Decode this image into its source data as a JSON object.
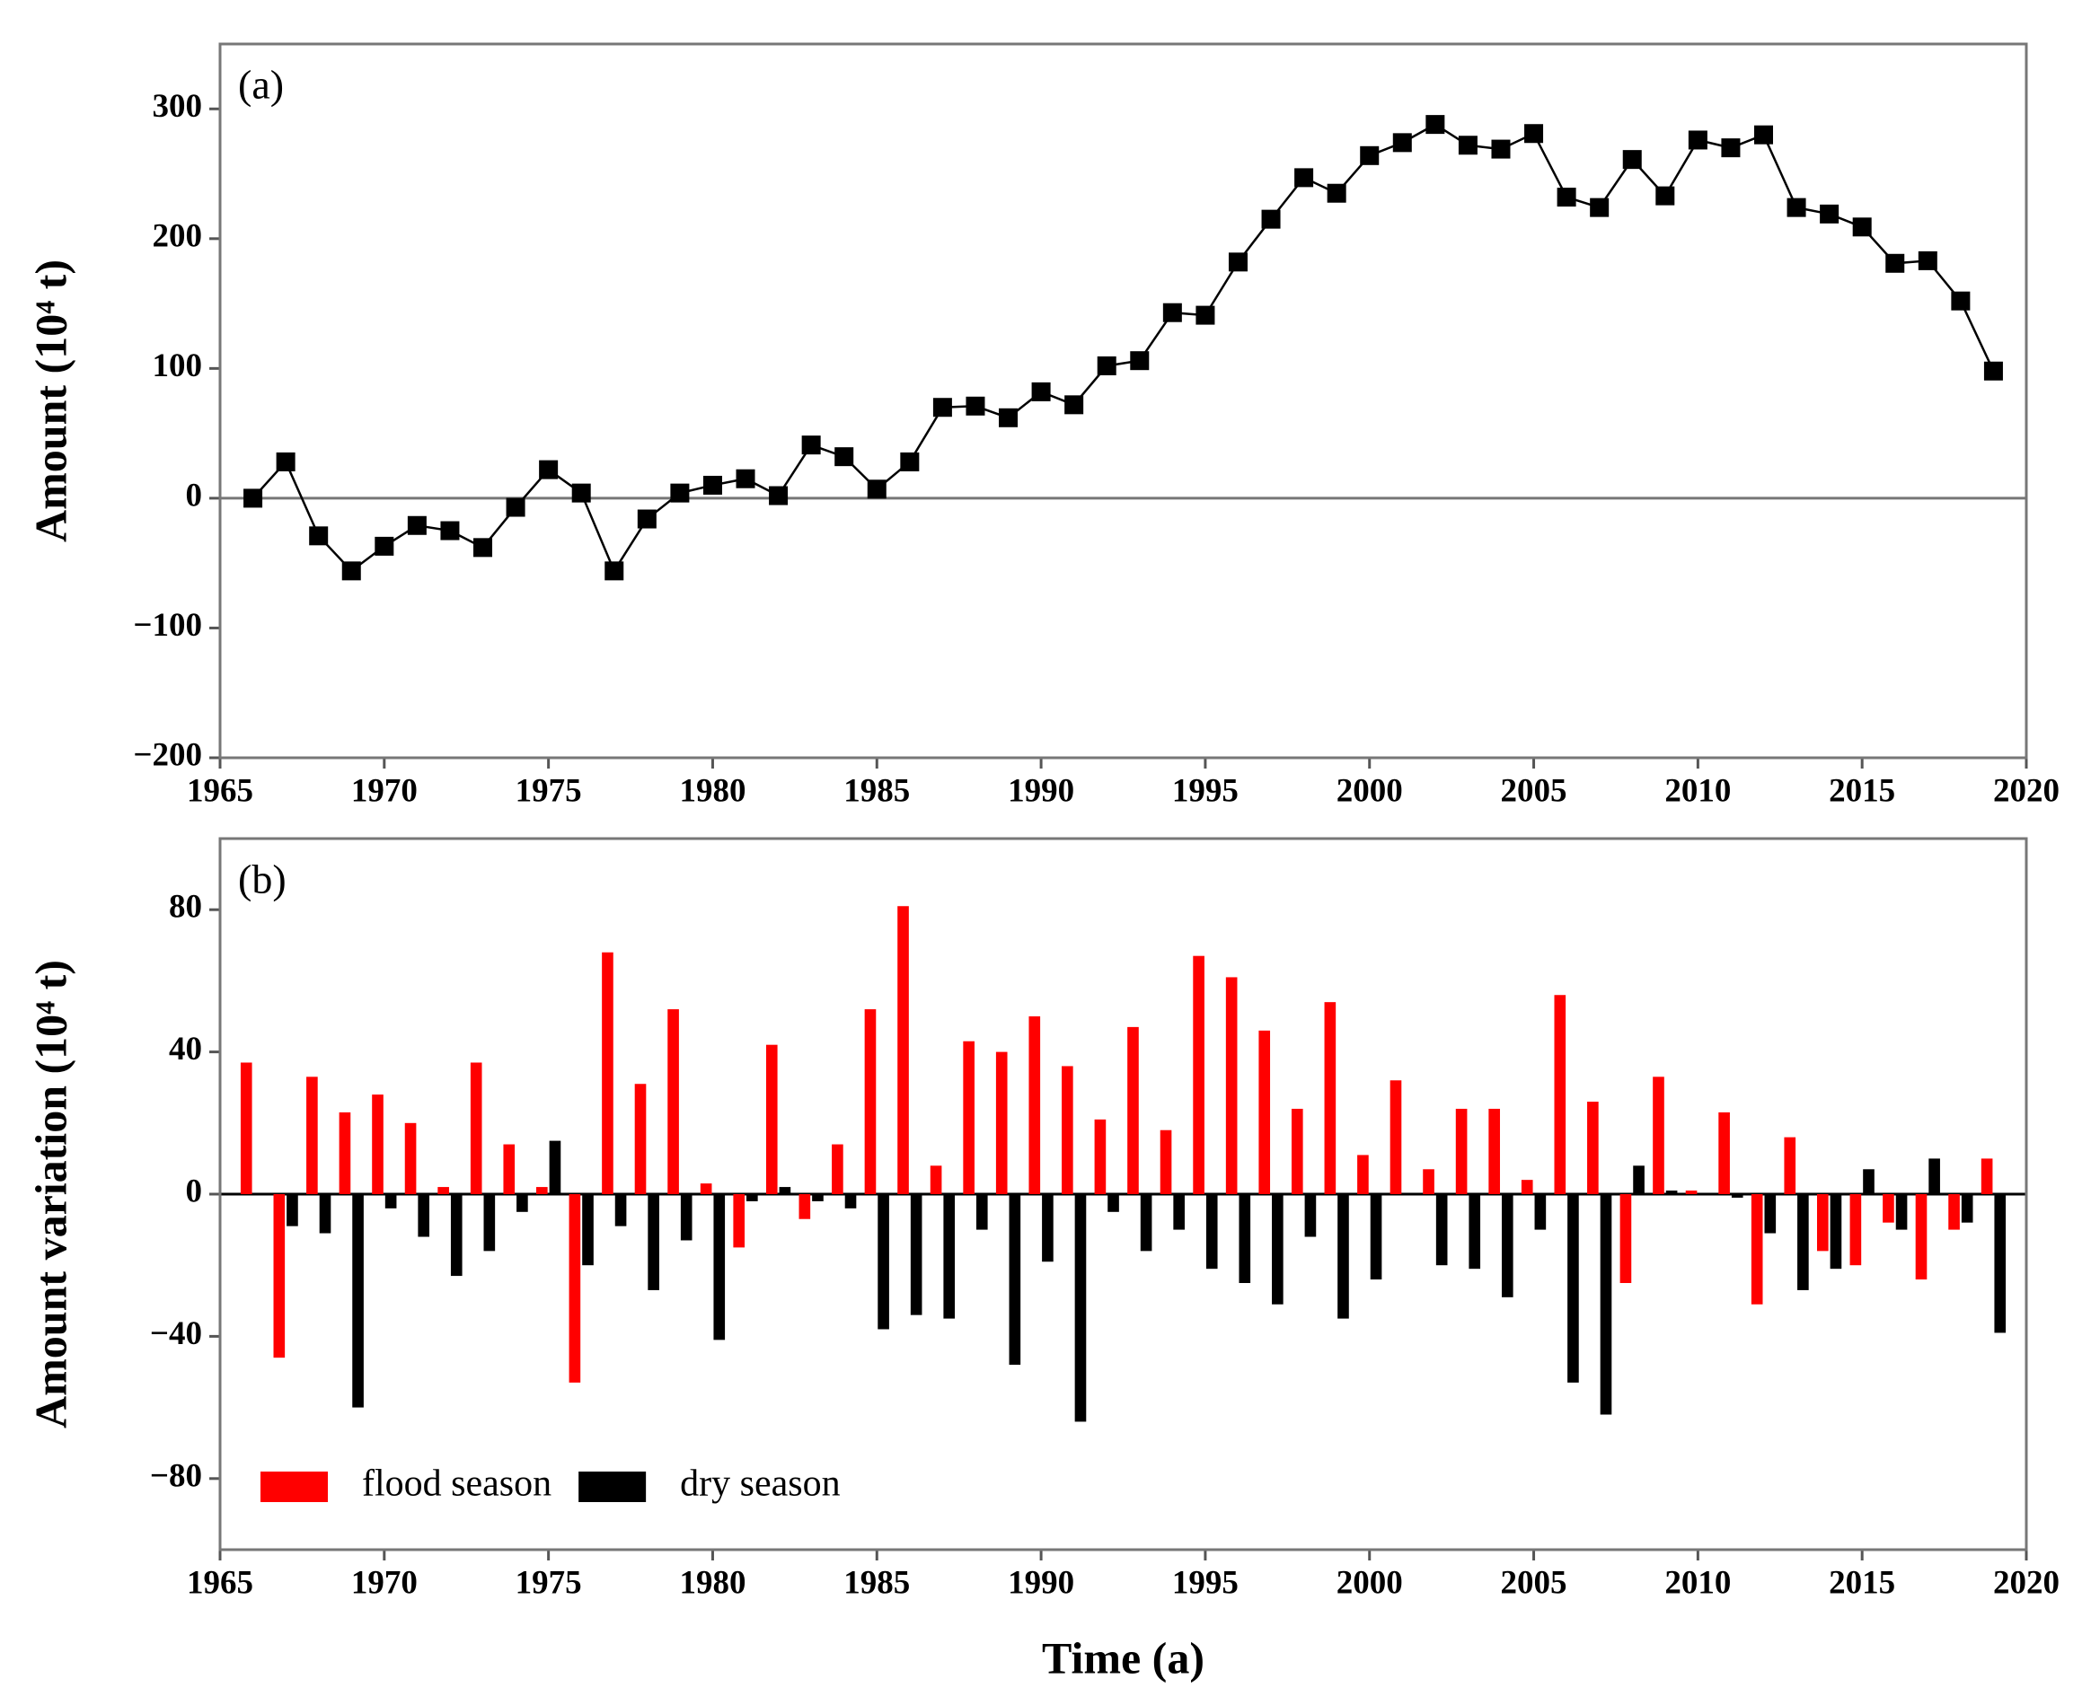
{
  "chart_data": [
    {
      "type": "line",
      "label": "(a)",
      "ylabel": "Amount (10⁴ t)",
      "color": "#000000",
      "x": [
        1966,
        1967,
        1968,
        1969,
        1970,
        1971,
        1972,
        1973,
        1974,
        1975,
        1976,
        1977,
        1978,
        1979,
        1980,
        1981,
        1982,
        1983,
        1984,
        1985,
        1986,
        1987,
        1988,
        1989,
        1990,
        1991,
        1992,
        1993,
        1994,
        1995,
        1996,
        1997,
        1998,
        1999,
        2000,
        2001,
        2002,
        2003,
        2004,
        2005,
        2006,
        2007,
        2008,
        2009,
        2010,
        2011,
        2012,
        2013,
        2014,
        2015,
        2016,
        2017,
        2018,
        2019
      ],
      "values": [
        0,
        28,
        -29,
        -56,
        -37,
        -21,
        -25,
        -38,
        -7,
        22,
        4,
        -56,
        -16,
        4,
        10,
        15,
        2,
        41,
        32,
        7,
        28,
        70,
        71,
        62,
        82,
        72,
        102,
        106,
        143,
        141,
        182,
        215,
        247,
        235,
        264,
        274,
        288,
        272,
        269,
        281,
        232,
        224,
        261,
        233,
        276,
        270,
        280,
        224,
        219,
        209,
        181,
        183,
        152,
        98
      ],
      "xlim": [
        1965,
        2020
      ],
      "xticks": [
        1965,
        1970,
        1975,
        1980,
        1985,
        1990,
        1995,
        2000,
        2005,
        2010,
        2015,
        2020
      ],
      "ylim": [
        -200,
        350
      ],
      "yticks": [
        {
          "value": -200,
          "label": "−200"
        },
        {
          "value": -100,
          "label": "−100"
        },
        0,
        100,
        200,
        300
      ]
    },
    {
      "type": "bar",
      "label": "(b)",
      "ylabel": "Amount variation (10⁴ t)",
      "xlabel": "Time (a)",
      "legend": "lower left",
      "x": [
        1966,
        1967,
        1968,
        1969,
        1970,
        1971,
        1972,
        1973,
        1974,
        1975,
        1976,
        1977,
        1978,
        1979,
        1980,
        1981,
        1982,
        1983,
        1984,
        1985,
        1986,
        1987,
        1988,
        1989,
        1990,
        1991,
        1992,
        1993,
        1994,
        1995,
        1996,
        1997,
        1998,
        1999,
        2000,
        2001,
        2002,
        2003,
        2004,
        2005,
        2006,
        2007,
        2008,
        2009,
        2010,
        2011,
        2012,
        2013,
        2014,
        2015,
        2016,
        2017,
        2018,
        2019
      ],
      "series": [
        {
          "name": "flood season",
          "color": "#ff0000",
          "values": [
            37,
            -46,
            33,
            23,
            28,
            20,
            2,
            37,
            14,
            2,
            -53,
            68,
            31,
            52,
            3,
            -15,
            42,
            -7,
            14,
            52,
            81,
            8,
            43,
            40,
            50,
            36,
            21,
            47,
            18,
            67,
            61,
            46,
            24,
            54,
            11,
            32,
            7,
            24,
            24,
            4,
            56,
            26,
            -25,
            33,
            1,
            23,
            -31,
            16,
            -16,
            -20,
            -8,
            -24,
            -10,
            10
          ]
        },
        {
          "name": "dry season",
          "color": "#000000",
          "values": [
            0,
            -9,
            -11,
            -60,
            -4,
            -12,
            -23,
            -16,
            -5,
            15,
            -20,
            -9,
            -27,
            -13,
            -41,
            -2,
            2,
            -2,
            -4,
            -38,
            -34,
            -35,
            -10,
            -48,
            -19,
            -64,
            -5,
            -16,
            -10,
            -21,
            -25,
            -31,
            -12,
            -35,
            -24,
            0,
            -20,
            -21,
            -29,
            -10,
            -53,
            -62,
            8,
            1,
            0,
            -1,
            -11,
            -27,
            -21,
            7,
            -10,
            10,
            -8,
            -39
          ]
        }
      ],
      "xlim": [
        1965,
        2020
      ],
      "xticks": [
        1965,
        1970,
        1975,
        1980,
        1985,
        1990,
        1995,
        2000,
        2005,
        2010,
        2015,
        2020
      ],
      "ylim": [
        -100,
        100
      ],
      "yticks": [
        {
          "value": -80,
          "label": "−80"
        },
        {
          "value": -40,
          "label": "−40"
        },
        0,
        40,
        80
      ]
    }
  ]
}
